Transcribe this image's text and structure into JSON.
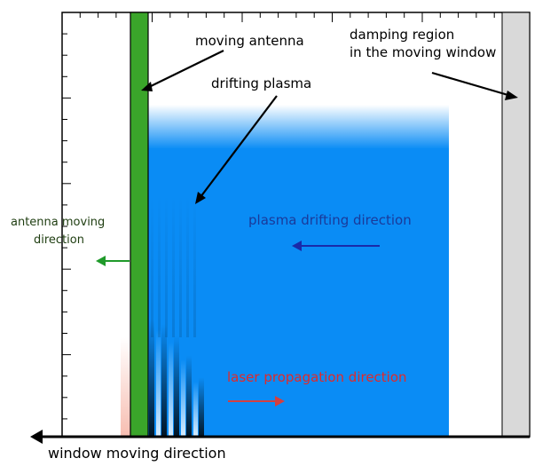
{
  "labels": {
    "moving_antenna": "moving antenna",
    "drifting_plasma": "drifting plasma",
    "damping_region_line1": "damping region",
    "damping_region_line2": "in the moving window",
    "antenna_moving_line1": "antenna moving",
    "antenna_moving_line2": "direction",
    "plasma_drifting": "plasma drifting direction",
    "laser_propagation": "laser propagation direction",
    "window_moving": "window moving direction"
  },
  "colors": {
    "antenna": "#3aa52a",
    "plasma": "#0a8cf5",
    "damping": "#d9d9d9",
    "antenna_text": "#1e3d10",
    "antenna_arrow": "#1f9a2a",
    "plasma_text": "#1a3a9a",
    "plasma_arrow": "#1a2aa8",
    "laser": "#e02a2a"
  }
}
